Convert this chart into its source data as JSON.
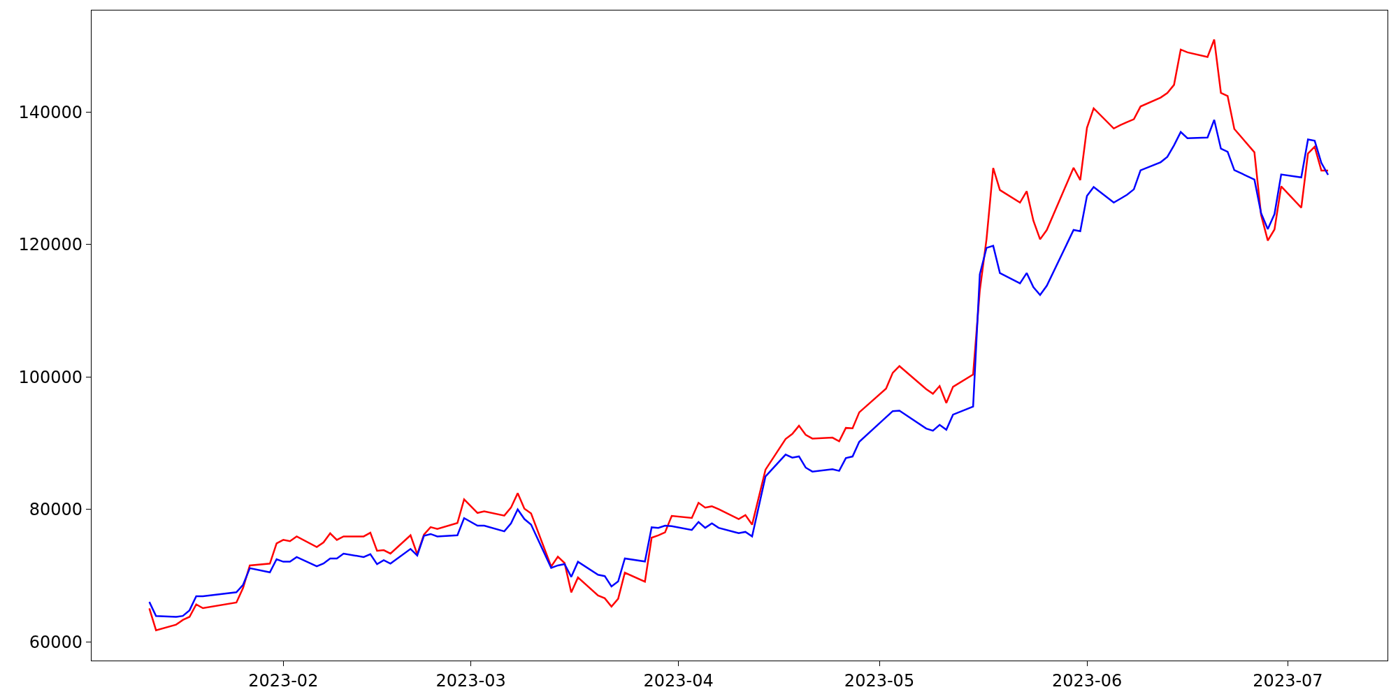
{
  "chart_data": {
    "type": "line",
    "xlim": [
      "2023-01-03T09:00",
      "2023-07-15T21:00"
    ],
    "xticks": [
      "2023-02",
      "2023-03",
      "2023-04",
      "2023-05",
      "2023-06",
      "2023-07"
    ],
    "ylim": [
      57160,
      155370
    ],
    "yticks": [
      60000,
      80000,
      100000,
      120000,
      140000
    ],
    "marker": "none",
    "line_style": "solid",
    "series": [
      {
        "color": "#ff0000",
        "x": [
          "2023-01-12",
          "2023-01-13",
          "2023-01-16",
          "2023-01-17",
          "2023-01-18",
          "2023-01-19",
          "2023-01-20",
          "2023-01-25",
          "2023-01-26",
          "2023-01-27",
          "2023-01-30",
          "2023-01-31",
          "2023-02-01",
          "2023-02-02",
          "2023-02-03",
          "2023-02-06",
          "2023-02-07",
          "2023-02-08",
          "2023-02-09",
          "2023-02-10",
          "2023-02-13",
          "2023-02-14",
          "2023-02-15",
          "2023-02-16",
          "2023-02-17",
          "2023-02-20",
          "2023-02-21",
          "2023-02-22",
          "2023-02-23",
          "2023-02-24",
          "2023-02-27",
          "2023-02-28",
          "2023-03-02",
          "2023-03-03",
          "2023-03-06",
          "2023-03-07",
          "2023-03-08",
          "2023-03-09",
          "2023-03-10",
          "2023-03-13",
          "2023-03-14",
          "2023-03-15",
          "2023-03-16",
          "2023-03-17",
          "2023-03-20",
          "2023-03-21",
          "2023-03-22",
          "2023-03-23",
          "2023-03-24",
          "2023-03-27",
          "2023-03-28",
          "2023-03-29",
          "2023-03-30",
          "2023-03-31",
          "2023-04-03",
          "2023-04-04",
          "2023-04-05",
          "2023-04-06",
          "2023-04-07",
          "2023-04-10",
          "2023-04-11",
          "2023-04-12",
          "2023-04-14",
          "2023-04-17",
          "2023-04-18",
          "2023-04-19",
          "2023-04-20",
          "2023-04-21",
          "2023-04-24",
          "2023-04-25",
          "2023-04-26",
          "2023-04-27",
          "2023-04-28",
          "2023-05-02",
          "2023-05-03",
          "2023-05-04",
          "2023-05-08",
          "2023-05-09",
          "2023-05-10",
          "2023-05-11",
          "2023-05-12",
          "2023-05-15",
          "2023-05-16",
          "2023-05-17",
          "2023-05-18",
          "2023-05-19",
          "2023-05-22",
          "2023-05-23",
          "2023-05-24",
          "2023-05-25",
          "2023-05-26",
          "2023-05-30",
          "2023-05-31",
          "2023-06-01",
          "2023-06-02",
          "2023-06-05",
          "2023-06-06",
          "2023-06-07",
          "2023-06-08",
          "2023-06-09",
          "2023-06-12",
          "2023-06-13",
          "2023-06-14",
          "2023-06-15",
          "2023-06-16",
          "2023-06-19",
          "2023-06-20",
          "2023-06-21",
          "2023-06-22",
          "2023-06-23",
          "2023-06-26",
          "2023-06-27",
          "2023-06-28",
          "2023-06-29",
          "2023-06-30",
          "2023-07-03",
          "2023-07-04",
          "2023-07-05",
          "2023-07-06",
          "2023-07-07"
        ],
        "values": [
          65040,
          61740,
          62590,
          63290,
          63760,
          65650,
          65080,
          65930,
          68140,
          71530,
          71810,
          74870,
          75390,
          75200,
          75910,
          74310,
          75010,
          76380,
          75390,
          75910,
          75910,
          76470,
          73740,
          73840,
          73320,
          76090,
          73220,
          76190,
          77320,
          77040,
          77930,
          81510,
          79460,
          79700,
          79060,
          80270,
          82440,
          80110,
          79380,
          71370,
          72860,
          71890,
          67460,
          69710,
          66980,
          66570,
          65320,
          66490,
          70440,
          69070,
          75720,
          76080,
          76520,
          79020,
          78700,
          80990,
          80270,
          80470,
          80030,
          78540,
          79140,
          77690,
          86000,
          90630,
          91400,
          92630,
          91260,
          90700,
          90840,
          90280,
          92310,
          92240,
          94660,
          98240,
          100630,
          101650,
          98170,
          97470,
          98630,
          96070,
          98520,
          100380,
          113080,
          120800,
          131570,
          128240,
          126350,
          128070,
          123610,
          120800,
          122210,
          131610,
          129750,
          137650,
          140590,
          137540,
          138070,
          138520,
          138940,
          140870,
          142210,
          142910,
          144140,
          149470,
          149050,
          148350,
          150980,
          142910,
          142450,
          137470,
          133950,
          124480,
          120610,
          122290,
          128800,
          125570,
          133760,
          134790,
          131180,
          131180
        ]
      },
      {
        "color": "#0000ff",
        "x": [
          "2023-01-12",
          "2023-01-13",
          "2023-01-16",
          "2023-01-17",
          "2023-01-18",
          "2023-01-19",
          "2023-01-20",
          "2023-01-25",
          "2023-01-26",
          "2023-01-27",
          "2023-01-30",
          "2023-01-31",
          "2023-02-01",
          "2023-02-02",
          "2023-02-03",
          "2023-02-06",
          "2023-02-07",
          "2023-02-08",
          "2023-02-09",
          "2023-02-10",
          "2023-02-13",
          "2023-02-14",
          "2023-02-15",
          "2023-02-16",
          "2023-02-17",
          "2023-02-20",
          "2023-02-21",
          "2023-02-22",
          "2023-02-23",
          "2023-02-24",
          "2023-02-27",
          "2023-02-28",
          "2023-03-02",
          "2023-03-03",
          "2023-03-06",
          "2023-03-07",
          "2023-03-08",
          "2023-03-09",
          "2023-03-10",
          "2023-03-13",
          "2023-03-14",
          "2023-03-15",
          "2023-03-16",
          "2023-03-17",
          "2023-03-20",
          "2023-03-21",
          "2023-03-22",
          "2023-03-23",
          "2023-03-24",
          "2023-03-27",
          "2023-03-28",
          "2023-03-29",
          "2023-03-30",
          "2023-03-31",
          "2023-04-03",
          "2023-04-04",
          "2023-04-05",
          "2023-04-06",
          "2023-04-07",
          "2023-04-10",
          "2023-04-11",
          "2023-04-12",
          "2023-04-14",
          "2023-04-17",
          "2023-04-18",
          "2023-04-19",
          "2023-04-20",
          "2023-04-21",
          "2023-04-24",
          "2023-04-25",
          "2023-04-26",
          "2023-04-27",
          "2023-04-28",
          "2023-05-03",
          "2023-05-04",
          "2023-05-08",
          "2023-05-09",
          "2023-05-10",
          "2023-05-11",
          "2023-05-12",
          "2023-05-15",
          "2023-05-16",
          "2023-05-17",
          "2023-05-18",
          "2023-05-19",
          "2023-05-22",
          "2023-05-23",
          "2023-05-24",
          "2023-05-25",
          "2023-05-26",
          "2023-05-30",
          "2023-05-31",
          "2023-06-01",
          "2023-06-02",
          "2023-06-05",
          "2023-06-06",
          "2023-06-07",
          "2023-06-08",
          "2023-06-09",
          "2023-06-12",
          "2023-06-13",
          "2023-06-14",
          "2023-06-15",
          "2023-06-16",
          "2023-06-19",
          "2023-06-20",
          "2023-06-21",
          "2023-06-22",
          "2023-06-23",
          "2023-06-26",
          "2023-06-27",
          "2023-06-28",
          "2023-06-29",
          "2023-06-30",
          "2023-07-03",
          "2023-07-04",
          "2023-07-05",
          "2023-07-06",
          "2023-07-07"
        ],
        "values": [
          66020,
          63900,
          63760,
          63900,
          64750,
          66870,
          66870,
          67480,
          68610,
          71110,
          70490,
          72470,
          72090,
          72090,
          72800,
          71390,
          71810,
          72570,
          72570,
          73320,
          72800,
          73220,
          71720,
          72330,
          71810,
          74020,
          73040,
          76000,
          76280,
          75910,
          76090,
          78680,
          77530,
          77530,
          76680,
          77890,
          79990,
          78540,
          77690,
          71170,
          71530,
          71730,
          69800,
          72090,
          70120,
          69920,
          68350,
          69110,
          72580,
          72130,
          77290,
          77210,
          77530,
          77450,
          76890,
          78090,
          77210,
          77890,
          77210,
          76400,
          76600,
          75920,
          84980,
          88280,
          87820,
          88000,
          86310,
          85710,
          86070,
          85820,
          87750,
          87990,
          90210,
          94840,
          94910,
          92210,
          91890,
          92770,
          92030,
          94310,
          95540,
          115500,
          119500,
          119820,
          115710,
          114140,
          115710,
          113580,
          112380,
          113780,
          122210,
          122030,
          127360,
          128700,
          126350,
          126940,
          127540,
          128350,
          131220,
          132450,
          133260,
          135010,
          137010,
          136070,
          136170,
          138840,
          134490,
          134030,
          131260,
          129830,
          124740,
          122350,
          124610,
          130600,
          130150,
          135890,
          135700,
          132340,
          130540
        ]
      }
    ]
  }
}
